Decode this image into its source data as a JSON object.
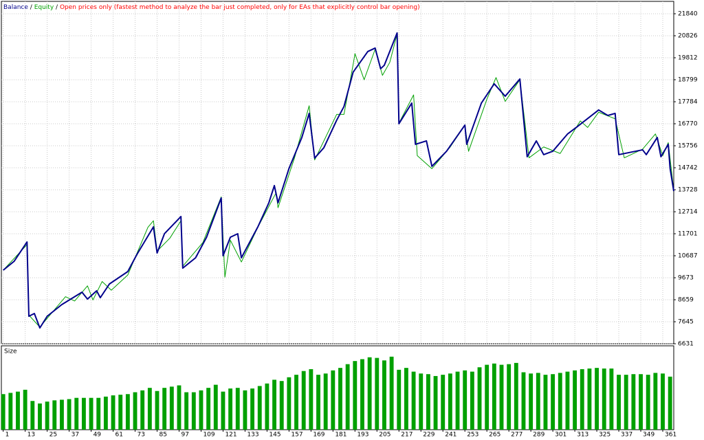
{
  "chart_data": [
    {
      "type": "line",
      "separator": "/",
      "subtitle": "Open prices only (fastest method to analyze the bar just completed, only for EAs that explicitly control bar opening)",
      "subtitle_color": "#ff0000",
      "xlim": [
        0,
        367
      ],
      "ylim": [
        6631,
        22410
      ],
      "yticks": [
        6631,
        7645,
        8659,
        9673,
        10687,
        11701,
        12714,
        13728,
        14742,
        15756,
        16770,
        17784,
        18799,
        19812,
        20826,
        21840
      ],
      "grid": true,
      "series": [
        {
          "name": "Balance",
          "color": "#00008b",
          "width": 2,
          "x": [
            1,
            7,
            14,
            15,
            18,
            21,
            25,
            33,
            44,
            47,
            52,
            54,
            59,
            69,
            74,
            83,
            85,
            89,
            98,
            99,
            106,
            112,
            120,
            121,
            125,
            129,
            131,
            134,
            140,
            146,
            149,
            151,
            157,
            164,
            168,
            171,
            176,
            183,
            187,
            192,
            200,
            204,
            207,
            209,
            216,
            217,
            224,
            226,
            232,
            235,
            243,
            253,
            254,
            262,
            269,
            275,
            283,
            287,
            292,
            296,
            301,
            309,
            314,
            326,
            331,
            335,
            337,
            350,
            352,
            358,
            360,
            364,
            365,
            367
          ],
          "values": [
            10022,
            10434,
            11321,
            7899,
            8025,
            7360,
            7899,
            8437,
            9008,
            8691,
            9071,
            8754,
            9388,
            9958,
            10751,
            12018,
            10814,
            11701,
            12494,
            10117,
            10592,
            11543,
            13349,
            10687,
            11543,
            11701,
            10592,
            11068,
            12018,
            13127,
            13920,
            13127,
            14712,
            16138,
            17247,
            15187,
            15663,
            16930,
            17564,
            19149,
            20099,
            20258,
            19307,
            19465,
            20955,
            16772,
            17723,
            15821,
            15980,
            14807,
            15504,
            16708,
            15821,
            17723,
            18610,
            18039,
            18832,
            15251,
            15980,
            15346,
            15504,
            16296,
            16613,
            17406,
            17152,
            17247,
            15346,
            15568,
            15346,
            16138,
            15251,
            15821,
            14712,
            13666
          ]
        },
        {
          "name": "Equity",
          "color": "#00a000",
          "width": 1,
          "x": [
            1,
            14,
            15,
            21,
            30,
            35,
            40,
            47,
            50,
            55,
            60,
            69,
            80,
            83,
            85,
            92,
            98,
            99,
            110,
            120,
            122,
            125,
            131,
            140,
            150,
            151,
            160,
            168,
            171,
            183,
            187,
            192,
            193,
            198,
            204,
            208,
            212,
            216,
            217,
            225,
            227,
            235,
            245,
            253,
            255,
            265,
            270,
            275,
            283,
            288,
            296,
            305,
            316,
            320,
            326,
            335,
            340,
            350,
            357,
            361,
            364,
            367
          ],
          "values": [
            10022,
            11200,
            7950,
            7400,
            8300,
            8800,
            8600,
            9300,
            8650,
            9500,
            9100,
            9800,
            12000,
            12300,
            10900,
            11500,
            12300,
            10200,
            11300,
            13400,
            9700,
            11400,
            10400,
            12000,
            13600,
            12900,
            15200,
            17600,
            15100,
            17200,
            17200,
            19500,
            20000,
            18800,
            20200,
            19000,
            19600,
            20900,
            16800,
            18100,
            15300,
            14700,
            15700,
            16700,
            15500,
            17900,
            18900,
            17800,
            18800,
            15200,
            15700,
            15400,
            16900,
            16600,
            17300,
            17000,
            15200,
            15600,
            16300,
            15300,
            15900,
            13700
          ]
        }
      ]
    },
    {
      "type": "bar",
      "title": "Size",
      "color": "#00a000",
      "xlim": [
        0,
        367
      ],
      "ylim": [
        0,
        1.3
      ],
      "xticks": [
        1,
        13,
        25,
        37,
        49,
        61,
        73,
        85,
        97,
        109,
        121,
        133,
        145,
        157,
        169,
        181,
        193,
        205,
        217,
        229,
        241,
        253,
        265,
        277,
        289,
        301,
        313,
        325,
        337,
        349,
        361
      ],
      "x": [
        1,
        5,
        9,
        13,
        17,
        21,
        25,
        29,
        33,
        37,
        41,
        45,
        49,
        53,
        57,
        61,
        65,
        69,
        73,
        77,
        81,
        85,
        89,
        93,
        97,
        101,
        105,
        109,
        113,
        117,
        121,
        125,
        129,
        133,
        137,
        141,
        145,
        149,
        153,
        157,
        161,
        165,
        169,
        173,
        177,
        181,
        185,
        189,
        193,
        197,
        201,
        205,
        209,
        213,
        217,
        221,
        225,
        229,
        233,
        237,
        241,
        245,
        249,
        253,
        257,
        261,
        265,
        269,
        273,
        277,
        281,
        285,
        289,
        293,
        297,
        301,
        305,
        309,
        313,
        317,
        321,
        325,
        329,
        333,
        337,
        341,
        345,
        349,
        353,
        357,
        361,
        365
      ],
      "values": [
        0.57,
        0.59,
        0.61,
        0.64,
        0.46,
        0.42,
        0.45,
        0.47,
        0.48,
        0.49,
        0.51,
        0.51,
        0.51,
        0.51,
        0.53,
        0.55,
        0.56,
        0.57,
        0.6,
        0.63,
        0.67,
        0.62,
        0.67,
        0.69,
        0.71,
        0.6,
        0.6,
        0.63,
        0.67,
        0.72,
        0.61,
        0.66,
        0.67,
        0.63,
        0.66,
        0.7,
        0.74,
        0.8,
        0.78,
        0.84,
        0.88,
        0.94,
        0.97,
        0.88,
        0.9,
        0.95,
        0.99,
        1.05,
        1.1,
        1.13,
        1.16,
        1.15,
        1.11,
        1.17,
        0.96,
        0.99,
        0.93,
        0.9,
        0.89,
        0.86,
        0.88,
        0.9,
        0.93,
        0.95,
        0.93,
        1.0,
        1.04,
        1.06,
        1.04,
        1.05,
        1.07,
        0.92,
        0.9,
        0.91,
        0.88,
        0.89,
        0.91,
        0.93,
        0.95,
        0.97,
        0.98,
        0.99,
        0.98,
        0.98,
        0.88,
        0.88,
        0.89,
        0.89,
        0.88,
        0.91,
        0.9,
        0.85
      ]
    }
  ]
}
